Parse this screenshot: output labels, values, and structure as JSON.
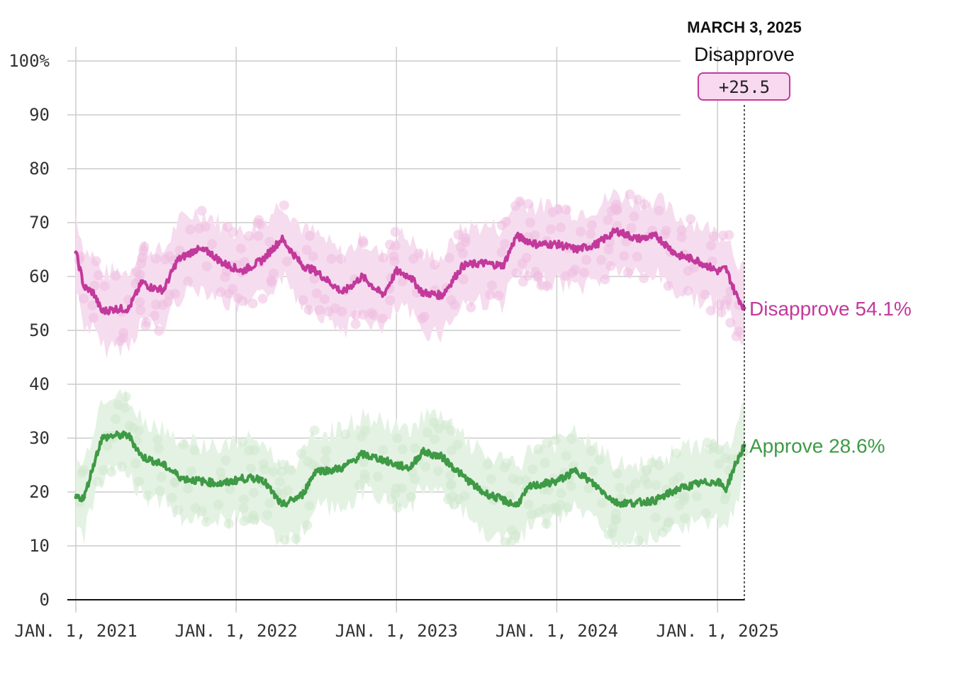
{
  "colors": {
    "disapprove": "#c2399b",
    "disapprove_band": "#f6dcef",
    "disapprove_dot": "#eebde0",
    "approve": "#3e9a45",
    "approve_band": "#e4f2e3",
    "approve_dot": "#cfe7cd",
    "grid": "#cccccc",
    "axis": "#111111",
    "badge_fill": "#f8d9f0",
    "badge_stroke": "#c2399b"
  },
  "hover": {
    "date": "MARCH 3, 2025",
    "series": "Disapprove",
    "net": "+25.5"
  },
  "chart_data": {
    "type": "line",
    "xlabel": "",
    "ylabel": "",
    "ylim": [
      0,
      100
    ],
    "xlim": [
      "2021-01-01",
      "2025-03-03"
    ],
    "y_ticks": [
      0,
      10,
      20,
      30,
      40,
      50,
      60,
      70,
      80,
      90,
      100
    ],
    "y_tick_labels": [
      "0",
      "10",
      "20",
      "30",
      "40",
      "50",
      "60",
      "70",
      "80",
      "90",
      "100%"
    ],
    "x_ticks": [
      "2021-01-01",
      "2022-01-01",
      "2023-01-01",
      "2024-01-01",
      "2025-01-01"
    ],
    "x_tick_labels": [
      "JAN. 1, 2021",
      "JAN. 1, 2022",
      "JAN. 1, 2023",
      "JAN. 1, 2024",
      "JAN. 1, 2025"
    ],
    "grid": true,
    "series": [
      {
        "name": "Disapprove",
        "end_label": "Disapprove 54.1%",
        "x": [
          "2021-01-01",
          "2021-01-20",
          "2021-02-10",
          "2021-03-01",
          "2021-04-01",
          "2021-05-01",
          "2021-06-01",
          "2021-06-20",
          "2021-07-20",
          "2021-08-20",
          "2021-10-01",
          "2021-11-01",
          "2021-12-01",
          "2022-01-15",
          "2022-03-01",
          "2022-04-15",
          "2022-06-01",
          "2022-07-01",
          "2022-08-01",
          "2022-09-01",
          "2022-10-15",
          "2022-12-01",
          "2023-01-01",
          "2023-02-01",
          "2023-03-01",
          "2023-04-15",
          "2023-06-01",
          "2023-07-15",
          "2023-09-01",
          "2023-10-01",
          "2023-11-15",
          "2024-01-01",
          "2024-02-15",
          "2024-04-01",
          "2024-05-15",
          "2024-07-01",
          "2024-08-15",
          "2024-10-01",
          "2024-11-15",
          "2025-01-01",
          "2025-01-20",
          "2025-02-10",
          "2025-03-03"
        ],
        "values": [
          64.5,
          58,
          57,
          53.5,
          54,
          54,
          59,
          58,
          57.5,
          63,
          65,
          64.5,
          62.5,
          61,
          63,
          67,
          62,
          61,
          59,
          57,
          60,
          56.5,
          61,
          60,
          57,
          56.5,
          62,
          62.5,
          62,
          67.5,
          66,
          66,
          65,
          66,
          68.5,
          67,
          67.5,
          64,
          63,
          61,
          61.5,
          57,
          54.1
        ]
      },
      {
        "name": "Approve",
        "end_label": "Approve 28.6%",
        "x": [
          "2021-01-01",
          "2021-01-20",
          "2021-02-10",
          "2021-03-01",
          "2021-04-01",
          "2021-05-01",
          "2021-06-01",
          "2021-06-20",
          "2021-07-20",
          "2021-09-01",
          "2021-10-15",
          "2021-12-01",
          "2022-01-15",
          "2022-03-01",
          "2022-04-15",
          "2022-06-01",
          "2022-07-01",
          "2022-08-01",
          "2022-09-01",
          "2022-10-15",
          "2022-12-01",
          "2023-01-01",
          "2023-02-01",
          "2023-03-01",
          "2023-04-15",
          "2023-06-01",
          "2023-07-15",
          "2023-09-01",
          "2023-10-01",
          "2023-11-01",
          "2024-01-01",
          "2024-02-15",
          "2024-04-01",
          "2024-05-15",
          "2024-07-01",
          "2024-08-15",
          "2024-10-01",
          "2024-11-15",
          "2025-01-01",
          "2025-01-20",
          "2025-02-10",
          "2025-03-03"
        ],
        "values": [
          19,
          19,
          25,
          30,
          30.5,
          30.5,
          26.5,
          26,
          25,
          22.5,
          22,
          21.5,
          22.5,
          22.5,
          17.5,
          19.5,
          24,
          24,
          24.5,
          27,
          26,
          25,
          24.5,
          27.5,
          26.5,
          23,
          20,
          18.5,
          17.5,
          21,
          22,
          24,
          21,
          18,
          18,
          18.5,
          20.5,
          21.5,
          22,
          20.5,
          25,
          28.6
        ]
      }
    ]
  }
}
